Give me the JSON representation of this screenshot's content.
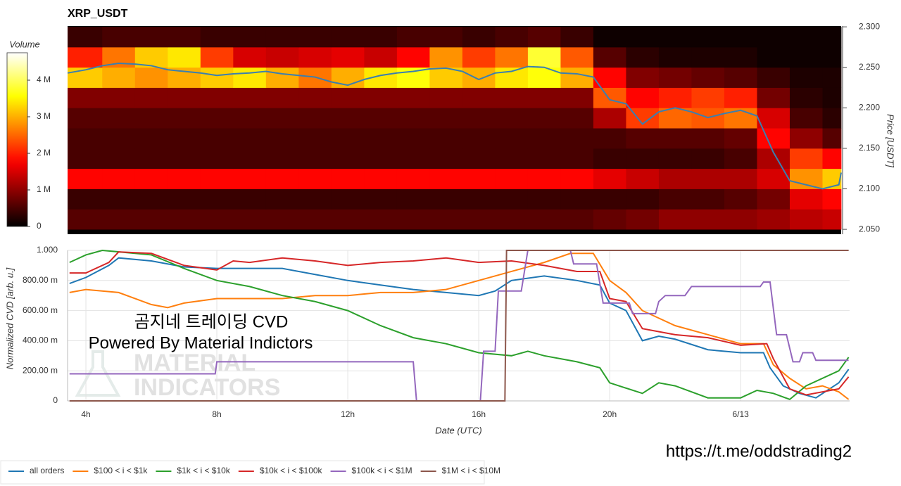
{
  "chart_data": [
    {
      "type": "heatmap",
      "title": "XRP_USDT",
      "ylabel": "Price [USDT]",
      "xlim": [
        3.44,
        27.07
      ],
      "ylim": [
        2.044,
        2.301
      ],
      "yticks": [
        {
          "value": 2.05,
          "label": "2.050"
        },
        {
          "value": 2.1,
          "label": "2.100"
        },
        {
          "value": 2.15,
          "label": "2.150"
        },
        {
          "value": 2.2,
          "label": "2.200"
        },
        {
          "value": 2.25,
          "label": "2.250"
        },
        {
          "value": 2.3,
          "label": "2.300"
        }
      ],
      "colormap": "hot",
      "colorbar": {
        "title": "Volume",
        "zlim": [
          0,
          4.75
        ],
        "ticks": [
          0,
          {
            "value": 1,
            "label": "1 M"
          },
          {
            "value": 2,
            "label": "2 M"
          },
          {
            "value": 3,
            "label": "3 M"
          },
          {
            "value": 4,
            "label": "4 M"
          }
        ]
      },
      "x_edges": [
        3.44,
        4.5,
        5.5,
        6.5,
        7.5,
        8.5,
        9.5,
        10.5,
        11.5,
        12.5,
        13.5,
        14.5,
        15.5,
        16.5,
        17.5,
        18.5,
        19.5,
        20.5,
        21.5,
        22.5,
        23.5,
        24.5,
        25.5,
        26.5,
        27.07
      ],
      "y_edges": [
        2.05,
        2.075,
        2.1,
        2.125,
        2.15,
        2.175,
        2.2,
        2.225,
        2.25,
        2.275,
        2.3
      ],
      "z": [
        [
          0.6,
          0.6,
          0.6,
          0.6,
          0.6,
          0.6,
          0.6,
          0.6,
          0.6,
          0.6,
          0.6,
          0.6,
          0.6,
          0.6,
          0.6,
          0.6,
          0.7,
          0.8,
          1.0,
          1.0,
          1.0,
          1.1,
          1.3,
          1.4
        ],
        [
          0.4,
          0.4,
          0.4,
          0.4,
          0.4,
          0.4,
          0.4,
          0.4,
          0.4,
          0.4,
          0.4,
          0.4,
          0.4,
          0.4,
          0.4,
          0.4,
          0.4,
          0.4,
          0.5,
          0.5,
          0.6,
          0.8,
          1.6,
          1.8
        ],
        [
          1.8,
          1.8,
          1.8,
          1.8,
          1.8,
          1.8,
          1.8,
          1.8,
          1.8,
          1.8,
          1.8,
          1.8,
          1.8,
          1.8,
          1.8,
          1.8,
          1.6,
          1.4,
          1.2,
          1.2,
          1.2,
          1.5,
          2.8,
          3.2
        ],
        [
          0.5,
          0.5,
          0.5,
          0.5,
          0.5,
          0.5,
          0.5,
          0.5,
          0.5,
          0.5,
          0.5,
          0.5,
          0.5,
          0.5,
          0.5,
          0.5,
          0.4,
          0.4,
          0.4,
          0.4,
          0.5,
          1.2,
          2.2,
          1.8
        ],
        [
          0.5,
          0.5,
          0.5,
          0.5,
          0.5,
          0.5,
          0.5,
          0.5,
          0.5,
          0.5,
          0.5,
          0.5,
          0.5,
          0.5,
          0.5,
          0.5,
          0.5,
          0.6,
          0.6,
          0.6,
          0.7,
          1.8,
          1.0,
          0.6
        ],
        [
          0.6,
          0.6,
          0.6,
          0.6,
          0.6,
          0.6,
          0.6,
          0.6,
          0.6,
          0.6,
          0.6,
          0.6,
          0.6,
          0.6,
          0.6,
          0.6,
          1.2,
          2.2,
          2.5,
          2.4,
          2.6,
          1.5,
          0.5,
          0.3
        ],
        [
          0.9,
          0.9,
          0.9,
          0.9,
          0.9,
          0.9,
          0.9,
          0.9,
          0.9,
          0.9,
          0.9,
          0.9,
          0.9,
          0.9,
          0.9,
          0.9,
          2.4,
          1.8,
          2.0,
          2.2,
          2.0,
          0.8,
          0.3,
          0.2
        ],
        [
          3.2,
          3.0,
          2.8,
          3.0,
          3.2,
          3.4,
          3.0,
          2.6,
          3.0,
          3.4,
          3.6,
          3.2,
          3.0,
          3.4,
          3.6,
          3.0,
          1.8,
          0.9,
          0.8,
          0.7,
          0.6,
          0.4,
          0.2,
          0.2
        ],
        [
          2.0,
          2.6,
          3.2,
          3.4,
          2.2,
          1.5,
          1.4,
          1.5,
          1.6,
          1.4,
          1.8,
          2.8,
          2.2,
          2.6,
          3.8,
          2.4,
          0.6,
          0.3,
          0.2,
          0.2,
          0.2,
          0.1,
          0.1,
          0.1
        ],
        [
          0.4,
          0.5,
          0.5,
          0.5,
          0.4,
          0.4,
          0.4,
          0.4,
          0.4,
          0.4,
          0.5,
          0.5,
          0.4,
          0.5,
          0.6,
          0.4,
          0.1,
          0.1,
          0.1,
          0.1,
          0.1,
          0.1,
          0.1,
          0.1
        ]
      ],
      "series": [
        {
          "color": "#3a7fb0",
          "x": [
            3.44,
            4,
            4.5,
            5,
            5.5,
            6,
            6.5,
            7,
            7.5,
            8,
            8.5,
            9,
            9.5,
            10,
            10.5,
            11,
            11.5,
            12,
            12.5,
            13,
            13.5,
            14,
            14.5,
            15,
            15.5,
            16,
            16.5,
            17,
            17.5,
            18,
            18.5,
            19,
            19.5,
            20,
            20.5,
            21,
            21.5,
            22,
            22.5,
            23,
            23.5,
            24,
            24.5,
            25,
            25.5,
            26,
            26.5,
            27,
            27.07
          ],
          "values": [
            2.243,
            2.247,
            2.252,
            2.255,
            2.254,
            2.252,
            2.247,
            2.245,
            2.243,
            2.24,
            2.242,
            2.243,
            2.245,
            2.242,
            2.24,
            2.238,
            2.232,
            2.228,
            2.235,
            2.24,
            2.243,
            2.245,
            2.248,
            2.249,
            2.245,
            2.235,
            2.243,
            2.245,
            2.251,
            2.25,
            2.243,
            2.242,
            2.238,
            2.21,
            2.205,
            2.18,
            2.195,
            2.2,
            2.195,
            2.188,
            2.193,
            2.197,
            2.19,
            2.145,
            2.11,
            2.105,
            2.1,
            2.105,
            2.12
          ]
        }
      ]
    },
    {
      "type": "line",
      "xlabel": "Date (UTC)",
      "ylabel": "Normalized CVD [arb. u.]",
      "xlim": [
        3.44,
        27.33
      ],
      "ylim": [
        0,
        1
      ],
      "grid": true,
      "legend": "bottom-left",
      "xticks": [
        {
          "value": 4,
          "label": "4h"
        },
        {
          "value": 8,
          "label": "8h"
        },
        {
          "value": 12,
          "label": "12h"
        },
        {
          "value": 16,
          "label": "16h"
        },
        {
          "value": 20,
          "label": "20h"
        },
        {
          "value": 24,
          "label": "6/13"
        }
      ],
      "yticks": [
        0,
        {
          "value": 0.2,
          "label": "200.00 m"
        },
        {
          "value": 0.4,
          "label": "400.00 m"
        },
        {
          "value": 0.6,
          "label": "600.00 m"
        },
        {
          "value": 0.8,
          "label": "800.00 m"
        },
        {
          "value": 1,
          "label": "1.000"
        }
      ],
      "series": [
        {
          "name": "all orders",
          "color": "#1f77b4",
          "x": [
            3.5,
            4,
            4.7,
            5,
            6,
            7,
            8,
            9,
            10,
            11,
            12,
            13,
            14,
            15,
            16,
            16.5,
            17,
            18,
            19,
            19.7,
            20,
            20.5,
            21,
            21.5,
            22,
            23,
            24,
            24.7,
            24.9,
            25.3,
            25.8,
            26.3,
            27,
            27.3
          ],
          "values": [
            0.78,
            0.82,
            0.9,
            0.95,
            0.93,
            0.89,
            0.88,
            0.88,
            0.88,
            0.84,
            0.8,
            0.77,
            0.74,
            0.72,
            0.7,
            0.73,
            0.8,
            0.83,
            0.8,
            0.77,
            0.65,
            0.6,
            0.4,
            0.43,
            0.41,
            0.34,
            0.32,
            0.32,
            0.22,
            0.1,
            0.05,
            0.02,
            0.12,
            0.21
          ]
        },
        {
          "name": "$100 < i < $1k",
          "color": "#ff7f0e",
          "x": [
            3.5,
            4,
            5,
            6,
            6.5,
            7,
            8,
            9,
            10,
            11,
            12,
            13,
            14,
            15,
            16,
            17,
            18,
            18.8,
            19.5,
            20,
            20.5,
            21,
            22,
            23,
            24,
            24.7,
            25,
            25.5,
            26,
            26.5,
            27,
            27.3
          ],
          "values": [
            0.72,
            0.74,
            0.72,
            0.64,
            0.62,
            0.65,
            0.68,
            0.68,
            0.68,
            0.7,
            0.7,
            0.72,
            0.72,
            0.74,
            0.8,
            0.86,
            0.92,
            0.98,
            0.98,
            0.8,
            0.72,
            0.6,
            0.5,
            0.44,
            0.38,
            0.38,
            0.24,
            0.15,
            0.08,
            0.1,
            0.06,
            0.01
          ]
        },
        {
          "name": "$1k < i < $10k",
          "color": "#2ca02c",
          "x": [
            3.5,
            4,
            4.5,
            5,
            6,
            7,
            8,
            9,
            10,
            11,
            12,
            13,
            14,
            15,
            16,
            17,
            17.5,
            18,
            19,
            19.7,
            20,
            21,
            21.5,
            22,
            23,
            24,
            24.5,
            25,
            25.5,
            26,
            27,
            27.3
          ],
          "values": [
            0.92,
            0.97,
            1.0,
            0.99,
            0.97,
            0.88,
            0.8,
            0.76,
            0.7,
            0.66,
            0.6,
            0.5,
            0.42,
            0.38,
            0.32,
            0.3,
            0.33,
            0.3,
            0.26,
            0.22,
            0.12,
            0.05,
            0.12,
            0.1,
            0.02,
            0.02,
            0.07,
            0.05,
            0.01,
            0.1,
            0.2,
            0.29
          ]
        },
        {
          "name": "$10k < i < $100k",
          "color": "#d62728",
          "x": [
            3.5,
            4,
            4.7,
            5,
            6,
            7,
            8,
            8.5,
            9,
            10,
            11,
            12,
            13,
            14,
            15,
            16,
            17,
            18,
            19,
            19.7,
            20,
            20.5,
            21,
            22,
            23,
            24,
            24.8,
            25,
            25.5,
            26,
            27,
            27.3
          ],
          "values": [
            0.85,
            0.85,
            0.92,
            0.99,
            0.98,
            0.9,
            0.87,
            0.93,
            0.92,
            0.95,
            0.93,
            0.9,
            0.92,
            0.93,
            0.95,
            0.92,
            0.93,
            0.9,
            0.86,
            0.86,
            0.68,
            0.66,
            0.48,
            0.44,
            0.42,
            0.37,
            0.38,
            0.28,
            0.08,
            0.04,
            0.08,
            0.16
          ]
        },
        {
          "name": "$100k < i < $1M",
          "color": "#9467bd",
          "x": [
            3.5,
            7.95,
            8.0,
            14.0,
            14.1,
            16.05,
            16.15,
            16.5,
            16.6,
            17.3,
            17.5,
            18.8,
            18.9,
            19.6,
            19.8,
            20.6,
            20.7,
            21.4,
            21.5,
            21.7,
            22.3,
            22.5,
            24.6,
            24.7,
            24.9,
            25.1,
            25.4,
            25.6,
            25.8,
            25.9,
            26.2,
            26.3,
            27.3
          ],
          "values": [
            0.18,
            0.18,
            0.26,
            0.26,
            0,
            0,
            0.33,
            0.33,
            0.73,
            0.73,
            1.0,
            1.0,
            0.91,
            0.91,
            0.65,
            0.65,
            0.58,
            0.58,
            0.66,
            0.7,
            0.7,
            0.76,
            0.76,
            0.79,
            0.79,
            0.44,
            0.44,
            0.26,
            0.26,
            0.32,
            0.32,
            0.27,
            0.27
          ]
        },
        {
          "name": "$1M < i < $10M",
          "color": "#8c564b",
          "x": [
            3.5,
            16.8,
            16.85,
            27.3
          ],
          "values": [
            0,
            0,
            1,
            1
          ]
        }
      ]
    }
  ],
  "annotations": {
    "caption": "곰지네 트레이딩 CVD",
    "powered_by": "Powered By Material Indictors",
    "link": "https://t.me/oddstrading2",
    "logo": [
      "MATERIAL",
      "INDICATORS"
    ]
  }
}
